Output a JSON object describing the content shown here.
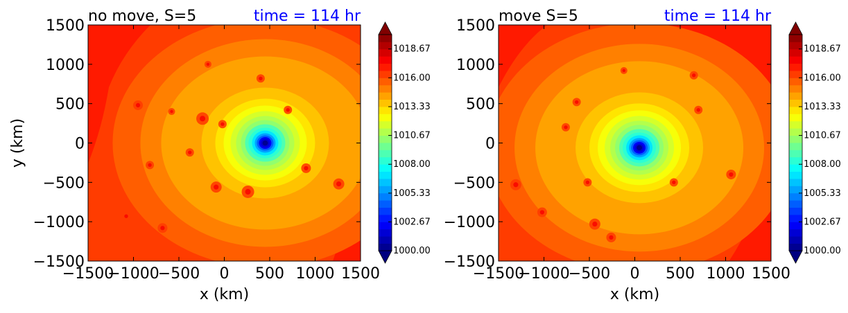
{
  "chart_data": [
    {
      "type": "heatmap",
      "title_left": "no move, S=5",
      "title_right": "time = 114 hr",
      "title_right_color": "#0000ff",
      "xlabel": "x (km)",
      "ylabel": "y (km)",
      "xlim": [
        -1500,
        1500
      ],
      "ylim": [
        -1500,
        1500
      ],
      "x_ticks": [
        -1500,
        -1000,
        -500,
        0,
        500,
        1000,
        1500
      ],
      "y_ticks": [
        1500,
        1000,
        500,
        0,
        -500,
        -1000,
        -1500
      ],
      "x_tick_labels": [
        "−1500",
        "−1000",
        "−500",
        "0",
        "500",
        "1000",
        "1500"
      ],
      "y_tick_labels": [
        "1500",
        "1000",
        "500",
        "0",
        "−500",
        "−1000",
        "−1500"
      ],
      "center_km": [
        450,
        0
      ],
      "background_value": 1016.3,
      "colorbar": {
        "min": 1000.0,
        "max": 1020.0,
        "extend": "both",
        "tick_values": [
          1000.0,
          1002.67,
          1005.33,
          1008.0,
          1010.67,
          1013.33,
          1016.0,
          1018.67
        ],
        "tick_labels": [
          "1000.00",
          "1002.67",
          "1005.33",
          "1008.00",
          "1010.67",
          "1013.33",
          "1016.00",
          "1018.67"
        ]
      }
    },
    {
      "type": "heatmap",
      "title_left": "move S=5",
      "title_right": "time = 114 hr",
      "title_right_color": "#0000ff",
      "xlabel": "x (km)",
      "ylabel": "",
      "xlim": [
        -1500,
        1500
      ],
      "ylim": [
        -1500,
        1500
      ],
      "x_ticks": [
        -1500,
        -1000,
        -500,
        0,
        500,
        1000,
        1500
      ],
      "y_ticks": [
        1500,
        1000,
        500,
        0,
        -500,
        -1000,
        -1500
      ],
      "x_tick_labels": [
        "−1500",
        "−1000",
        "−500",
        "0",
        "500",
        "1000",
        "1500"
      ],
      "y_tick_labels": [
        "1500",
        "1000",
        "500",
        "0",
        "−500",
        "−1000",
        "−1500"
      ],
      "center_km": [
        50,
        -60
      ],
      "background_value": 1016.0,
      "colorbar": {
        "min": 1000.0,
        "max": 1020.0,
        "extend": "both",
        "tick_values": [
          1000.0,
          1002.67,
          1005.33,
          1008.0,
          1010.67,
          1013.33,
          1016.0,
          1018.67
        ],
        "tick_labels": [
          "1000.00",
          "1002.67",
          "1005.33",
          "1008.00",
          "1010.67",
          "1013.33",
          "1016.00",
          "1018.67"
        ]
      }
    }
  ]
}
